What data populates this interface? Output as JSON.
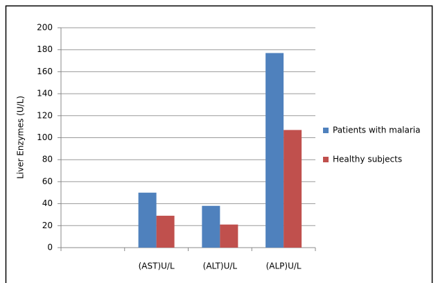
{
  "chart_data": {
    "type": "bar",
    "y_label": "Liver Enzymes (U/L)",
    "categories": [
      null,
      "(AST)U/L",
      "(ALT)U/L",
      "(ALP)U/L"
    ],
    "series": [
      {
        "name": "Patients with malaria",
        "color": "#4f81bd",
        "values": [
          null,
          50,
          38,
          177
        ]
      },
      {
        "name": "Healthy subjects",
        "color": "#c0504d",
        "values": [
          null,
          29,
          21,
          107
        ]
      }
    ],
    "ylim": [
      0,
      200
    ],
    "yticks": [
      0,
      20,
      40,
      60,
      80,
      100,
      120,
      140,
      160,
      180,
      200
    ],
    "grid": true,
    "legend": "right"
  }
}
